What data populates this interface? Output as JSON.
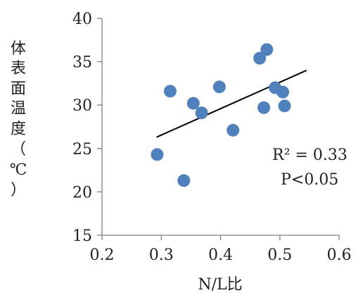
{
  "chart_data": {
    "type": "scatter",
    "xlabel": "N/L比",
    "ylabel_chars": [
      "体",
      "表",
      "面",
      "温",
      "度",
      "（",
      "℃",
      "）"
    ],
    "xlim": [
      0.2,
      0.6
    ],
    "ylim": [
      15,
      40
    ],
    "x_ticks": [
      "0.2",
      "0.3",
      "0.4",
      "0.5",
      "0.6"
    ],
    "y_ticks": [
      "15",
      "20",
      "25",
      "30",
      "35",
      "40"
    ],
    "grid": false,
    "marker_color": "#4f81bd",
    "trendline_color": "#000000",
    "points": [
      {
        "x": 0.293,
        "y": 24.3
      },
      {
        "x": 0.315,
        "y": 31.6
      },
      {
        "x": 0.338,
        "y": 21.3
      },
      {
        "x": 0.354,
        "y": 30.2
      },
      {
        "x": 0.368,
        "y": 29.1
      },
      {
        "x": 0.398,
        "y": 32.1
      },
      {
        "x": 0.421,
        "y": 27.1
      },
      {
        "x": 0.466,
        "y": 35.4
      },
      {
        "x": 0.473,
        "y": 29.7
      },
      {
        "x": 0.478,
        "y": 36.4
      },
      {
        "x": 0.492,
        "y": 32.0
      },
      {
        "x": 0.505,
        "y": 31.5
      },
      {
        "x": 0.508,
        "y": 29.9
      }
    ],
    "trendline": {
      "x": [
        0.292,
        0.545
      ],
      "y": [
        26.3,
        34.0
      ]
    },
    "annotations": [
      "R² = 0.33",
      "P<0.05"
    ]
  }
}
